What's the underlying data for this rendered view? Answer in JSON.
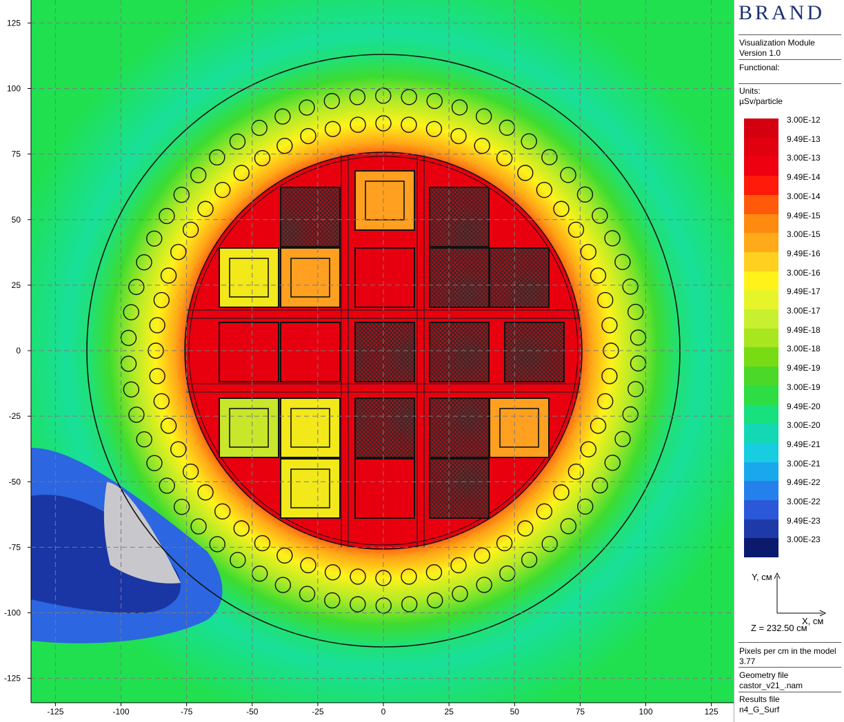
{
  "brand": "BRAND",
  "header": {
    "module": "Visualization Module",
    "version": "Version 1.0",
    "functional_label": "Functional:",
    "units_label": "Units:",
    "units_value": "µSv/particle"
  },
  "legend": [
    {
      "label": "3.00E-12",
      "color": "#d4000f"
    },
    {
      "label": "9.49E-13",
      "color": "#e1000e"
    },
    {
      "label": "3.00E-13",
      "color": "#ee0010"
    },
    {
      "label": "9.49E-14",
      "color": "#ff1a0a"
    },
    {
      "label": "3.00E-14",
      "color": "#ff5a0a"
    },
    {
      "label": "9.49E-15",
      "color": "#ff8a10"
    },
    {
      "label": "3.00E-15",
      "color": "#ffaa18"
    },
    {
      "label": "9.49E-16",
      "color": "#ffd020"
    },
    {
      "label": "3.00E-16",
      "color": "#fff21a"
    },
    {
      "label": "9.49E-17",
      "color": "#e6f52a"
    },
    {
      "label": "3.00E-17",
      "color": "#c8f030"
    },
    {
      "label": "9.49E-18",
      "color": "#a8e620"
    },
    {
      "label": "3.00E-18",
      "color": "#78dc14"
    },
    {
      "label": "9.49E-19",
      "color": "#4cd828"
    },
    {
      "label": "3.00E-19",
      "color": "#2edc44"
    },
    {
      "label": "9.49E-20",
      "color": "#18e07e"
    },
    {
      "label": "3.00E-20",
      "color": "#14d8b4"
    },
    {
      "label": "9.49E-21",
      "color": "#18cde0"
    },
    {
      "label": "3.00E-21",
      "color": "#1aa8ec"
    },
    {
      "label": "9.49E-22",
      "color": "#2480ea"
    },
    {
      "label": "3.00E-22",
      "color": "#2a58d8"
    },
    {
      "label": "9.49E-23",
      "color": "#1e3aa8"
    },
    {
      "label": "3.00E-23",
      "color": "#0c1a6e"
    }
  ],
  "axes_indicator": {
    "y_label": "Y, см",
    "x_label": "X, см",
    "z_label": "Z = 232.50 см"
  },
  "info": {
    "pixels_label": "Pixels per cm in the model",
    "pixels_value": "3.77",
    "geometry_label": "Geometry file",
    "geometry_value": "castor_v21_.nam",
    "results_label": "Results file",
    "results_value": "n4_G_Surf"
  },
  "axis": {
    "x_ticks": [
      "-125",
      "-100",
      "-75",
      "-50",
      "-25",
      "0",
      "25",
      "50",
      "75",
      "100",
      "125"
    ],
    "y_ticks": [
      "125",
      "100",
      "75",
      "50",
      "25",
      "0",
      "-25",
      "-50",
      "-75",
      "-100",
      "-125"
    ]
  }
}
